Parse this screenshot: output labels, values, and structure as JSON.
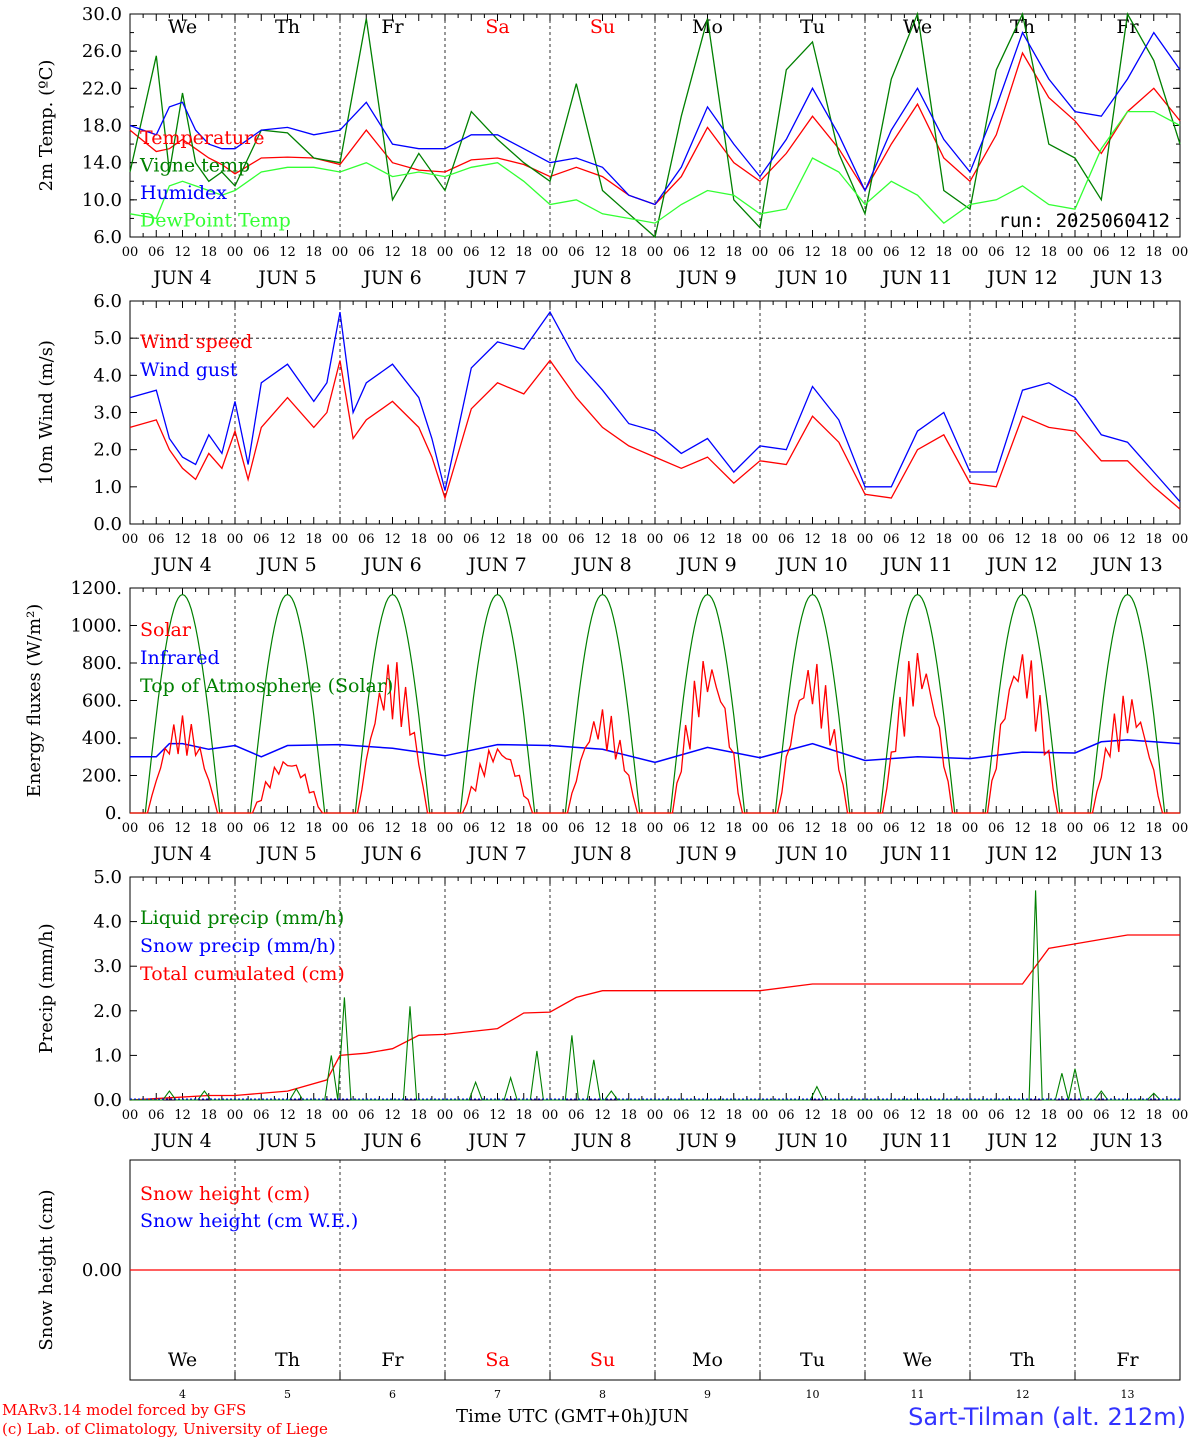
{
  "days": [
    {
      "dow": "We",
      "dow_color": "#000000",
      "date": "JUN  4",
      "daynum": "4"
    },
    {
      "dow": "Th",
      "dow_color": "#000000",
      "date": "JUN  5",
      "daynum": "5"
    },
    {
      "dow": "Fr",
      "dow_color": "#000000",
      "date": "JUN  6",
      "daynum": "6"
    },
    {
      "dow": "Sa",
      "dow_color": "#ff0000",
      "date": "JUN  7",
      "daynum": "7"
    },
    {
      "dow": "Su",
      "dow_color": "#ff0000",
      "date": "JUN  8",
      "daynum": "8"
    },
    {
      "dow": "Mo",
      "dow_color": "#000000",
      "date": "JUN  9",
      "daynum": "9"
    },
    {
      "dow": "Tu",
      "dow_color": "#000000",
      "date": "JUN 10",
      "daynum": "10"
    },
    {
      "dow": "We",
      "dow_color": "#000000",
      "date": "JUN 11",
      "daynum": "11"
    },
    {
      "dow": "Th",
      "dow_color": "#000000",
      "date": "JUN 12",
      "daynum": "12"
    },
    {
      "dow": "Fr",
      "dow_color": "#000000",
      "date": "JUN 13",
      "daynum": "13"
    }
  ],
  "hour_ticks": [
    "00",
    "06",
    "12",
    "18"
  ],
  "footer": {
    "model": "MARv3.14 model forced by GFS",
    "lab": "(c) Lab. of Climatology, University of Liege",
    "xlabel": "Time UTC (GMT+0h)",
    "month": "JUN",
    "station": "Sart-Tilman (alt. 212m)"
  },
  "chart_data": [
    {
      "type": "line",
      "ylabel": "2m Temp. (ºC)",
      "ylim": [
        6,
        30
      ],
      "yticks": [
        "6.0",
        "10.0",
        "14.0",
        "18.0",
        "22.0",
        "26.0",
        "30.0"
      ],
      "annotation": "run: 2025060412",
      "show_dow": true,
      "legend": [
        {
          "label": "Temperature",
          "color": "#ff0000"
        },
        {
          "label": "Vigne temp",
          "color": "#008000"
        },
        {
          "label": "Humidex",
          "color": "#0000ff"
        },
        {
          "label": "DewPoint Temp",
          "color": "#33ff33"
        }
      ],
      "x_hours": [
        0,
        6,
        9,
        12,
        15,
        18,
        21,
        24,
        30,
        36,
        42,
        48,
        54,
        60,
        66,
        72,
        78,
        84,
        90,
        96,
        102,
        108,
        114,
        120,
        126,
        132,
        138,
        144,
        150,
        156,
        162,
        168,
        174,
        180,
        186,
        192,
        198,
        204,
        210,
        216,
        222,
        228,
        234,
        240
      ],
      "series": [
        {
          "name": "Temperature",
          "color": "#ff0000",
          "values": [
            17.5,
            15.2,
            15.5,
            16.5,
            15.5,
            14.5,
            13.8,
            12.8,
            14.5,
            14.6,
            14.5,
            13.8,
            17.5,
            14.0,
            13.2,
            13.0,
            14.3,
            14.5,
            13.8,
            12.5,
            13.5,
            12.5,
            10.5,
            9.5,
            12.5,
            17.8,
            14.0,
            12.0,
            15.0,
            19.0,
            15.5,
            11.0,
            16.0,
            20.3,
            14.5,
            12.0,
            17.0,
            25.8,
            21.0,
            18.5,
            15.0,
            19.5,
            22.0,
            18.5
          ]
        },
        {
          "name": "Vigne temp",
          "color": "#008000",
          "values": [
            13.0,
            25.5,
            13.0,
            21.5,
            14.0,
            12.0,
            13.0,
            11.5,
            17.5,
            17.2,
            14.5,
            14.0,
            29.5,
            10.0,
            15.0,
            11.0,
            19.5,
            16.5,
            14.0,
            12.0,
            22.5,
            11.0,
            8.5,
            6.0,
            19.0,
            29.5,
            10.0,
            7.0,
            24.0,
            27.0,
            15.0,
            8.5,
            23.0,
            30.0,
            11.0,
            9.0,
            24.0,
            30.0,
            16.0,
            14.5,
            10.0,
            30.0,
            25.0,
            16.0
          ]
        },
        {
          "name": "Humidex",
          "color": "#0000ff",
          "values": [
            18.0,
            17.0,
            20.0,
            20.5,
            17.5,
            16.0,
            15.5,
            15.5,
            17.5,
            17.8,
            17.0,
            17.5,
            20.5,
            16.0,
            15.5,
            15.5,
            17.0,
            17.0,
            15.5,
            14.0,
            14.5,
            13.5,
            10.5,
            9.5,
            13.5,
            20.0,
            16.0,
            12.5,
            16.5,
            22.0,
            17.0,
            11.0,
            17.5,
            22.0,
            16.5,
            13.0,
            20.0,
            28.0,
            23.0,
            19.5,
            19.0,
            23.0,
            28.0,
            24.0
          ]
        },
        {
          "name": "DewPoint Temp",
          "color": "#33ff33",
          "values": [
            8.5,
            8.0,
            11.5,
            12.0,
            11.5,
            11.0,
            10.5,
            11.0,
            13.0,
            13.5,
            13.5,
            13.0,
            14.0,
            12.5,
            13.0,
            12.5,
            13.5,
            14.0,
            12.0,
            9.5,
            10.0,
            8.5,
            8.0,
            7.5,
            9.5,
            11.0,
            10.5,
            8.5,
            9.0,
            14.5,
            13.0,
            9.5,
            12.0,
            10.5,
            7.5,
            9.5,
            10.0,
            11.5,
            9.5,
            9.0,
            15.5,
            19.5,
            19.5,
            18.0
          ]
        }
      ]
    },
    {
      "type": "line",
      "ylabel": "10m Wind (m/s)",
      "ylim": [
        0,
        6
      ],
      "yticks": [
        "0.0",
        "1.0",
        "2.0",
        "3.0",
        "4.0",
        "5.0",
        "6.0"
      ],
      "ref_line": 5,
      "legend": [
        {
          "label": "Wind speed",
          "color": "#ff0000"
        },
        {
          "label": "Wind gust",
          "color": "#0000ff"
        }
      ],
      "x_hours": [
        0,
        6,
        9,
        12,
        15,
        18,
        21,
        24,
        27,
        30,
        36,
        42,
        45,
        48,
        51,
        54,
        60,
        66,
        69,
        72,
        78,
        84,
        90,
        96,
        102,
        108,
        114,
        120,
        126,
        132,
        138,
        144,
        150,
        156,
        162,
        168,
        174,
        180,
        186,
        192,
        198,
        204,
        210,
        216,
        222,
        228,
        234,
        240
      ],
      "series": [
        {
          "name": "Wind speed",
          "color": "#ff0000",
          "values": [
            2.6,
            2.8,
            2.0,
            1.5,
            1.2,
            1.9,
            1.5,
            2.5,
            1.2,
            2.6,
            3.4,
            2.6,
            3.0,
            4.4,
            2.3,
            2.8,
            3.3,
            2.6,
            1.8,
            0.7,
            3.1,
            3.8,
            3.5,
            4.4,
            3.4,
            2.6,
            2.1,
            1.8,
            1.5,
            1.8,
            1.1,
            1.7,
            1.6,
            2.9,
            2.2,
            0.8,
            0.7,
            2.0,
            2.4,
            1.1,
            1.0,
            2.9,
            2.6,
            2.5,
            1.7,
            1.7,
            1.0,
            0.4
          ]
        },
        {
          "name": "Wind gust",
          "color": "#0000ff",
          "values": [
            3.4,
            3.6,
            2.3,
            1.8,
            1.6,
            2.4,
            1.9,
            3.3,
            1.6,
            3.8,
            4.3,
            3.3,
            3.8,
            5.7,
            3.0,
            3.8,
            4.3,
            3.4,
            2.3,
            0.9,
            4.2,
            4.9,
            4.7,
            5.7,
            4.4,
            3.6,
            2.7,
            2.5,
            1.9,
            2.3,
            1.4,
            2.1,
            2.0,
            3.7,
            2.8,
            1.0,
            1.0,
            2.5,
            3.0,
            1.4,
            1.4,
            3.6,
            3.8,
            3.4,
            2.4,
            2.2,
            1.4,
            0.6
          ]
        }
      ]
    },
    {
      "type": "line",
      "ylabel": "Energy fluxes (W/m²)",
      "ylim": [
        0,
        1200
      ],
      "yticks": [
        "0.",
        "200.",
        "400.",
        "600.",
        "800.",
        "1000.",
        "1200."
      ],
      "legend": [
        {
          "label": "Solar",
          "color": "#ff0000"
        },
        {
          "label": "Infrared",
          "color": "#0000ff"
        },
        {
          "label": "Top of Atmosphere (Solar)",
          "color": "#008000"
        }
      ],
      "toa_peak": 1165,
      "toa_sunrise_hour": 3.5,
      "toa_sunset_hour": 20.5,
      "infrared": {
        "x_hours": [
          0,
          6,
          9,
          12,
          18,
          24,
          30,
          36,
          48,
          60,
          72,
          84,
          96,
          108,
          120,
          132,
          144,
          156,
          168,
          180,
          192,
          204,
          216,
          222,
          228,
          234,
          240
        ],
        "values": [
          300,
          300,
          370,
          370,
          340,
          360,
          300,
          360,
          365,
          345,
          305,
          365,
          360,
          340,
          270,
          350,
          295,
          370,
          280,
          300,
          290,
          325,
          320,
          380,
          390,
          380,
          370
        ]
      },
      "solar": {
        "day_peaks": [
          520,
          300,
          820,
          370,
          560,
          850,
          820,
          880,
          890,
          640
        ]
      }
    },
    {
      "type": "line",
      "ylabel": "Precip (mm/h)",
      "ylim": [
        0,
        5
      ],
      "yticks": [
        "0.0",
        "1.0",
        "2.0",
        "3.0",
        "4.0",
        "5.0"
      ],
      "legend": [
        {
          "label": "Liquid precip (mm/h)",
          "color": "#008000"
        },
        {
          "label": "Snow precip (mm/h)",
          "color": "#0000ff"
        },
        {
          "label": "Total cumulated (cm)",
          "color": "#ff0000"
        }
      ],
      "x_hours": [
        0,
        9,
        18,
        24,
        36,
        45,
        48,
        54,
        60,
        66,
        72,
        84,
        90,
        96,
        102,
        108,
        114,
        120,
        144,
        156,
        168,
        192,
        204,
        210,
        216,
        222,
        228,
        234,
        240
      ],
      "series": [
        {
          "name": "Total cumulated (cm)",
          "color": "#ff0000",
          "values": [
            0.0,
            0.05,
            0.1,
            0.1,
            0.2,
            0.45,
            1.0,
            1.05,
            1.15,
            1.45,
            1.47,
            1.6,
            1.95,
            1.97,
            2.3,
            2.45,
            2.45,
            2.45,
            2.45,
            2.6,
            2.6,
            2.6,
            2.6,
            3.4,
            3.5,
            3.6,
            3.7,
            3.7,
            3.7
          ]
        }
      ],
      "liquid_spikes": [
        {
          "hour": 9,
          "value": 0.2
        },
        {
          "hour": 17,
          "value": 0.2
        },
        {
          "hour": 38,
          "value": 0.25
        },
        {
          "hour": 46,
          "value": 1.0
        },
        {
          "hour": 49,
          "value": 2.3
        },
        {
          "hour": 64,
          "value": 2.1
        },
        {
          "hour": 79,
          "value": 0.4
        },
        {
          "hour": 87,
          "value": 0.5
        },
        {
          "hour": 93,
          "value": 1.1
        },
        {
          "hour": 101,
          "value": 1.45
        },
        {
          "hour": 106,
          "value": 0.9
        },
        {
          "hour": 110,
          "value": 0.2
        },
        {
          "hour": 157,
          "value": 0.3
        },
        {
          "hour": 207,
          "value": 4.7
        },
        {
          "hour": 213,
          "value": 0.6
        },
        {
          "hour": 216,
          "value": 0.7
        },
        {
          "hour": 222,
          "value": 0.2
        },
        {
          "hour": 234,
          "value": 0.15
        }
      ]
    },
    {
      "type": "line",
      "ylabel": "Snow height (cm)",
      "ylim": [
        -1,
        1
      ],
      "yticks": [
        "0.00"
      ],
      "show_dow_bottom": true,
      "legend": [
        {
          "label": "Snow height (cm)",
          "color": "#ff0000"
        },
        {
          "label": "Snow height (cm W.E.)",
          "color": "#0000ff"
        }
      ],
      "series": [
        {
          "name": "Snow height (cm)",
          "color": "#ff0000",
          "values": [
            0,
            0
          ]
        }
      ]
    }
  ]
}
